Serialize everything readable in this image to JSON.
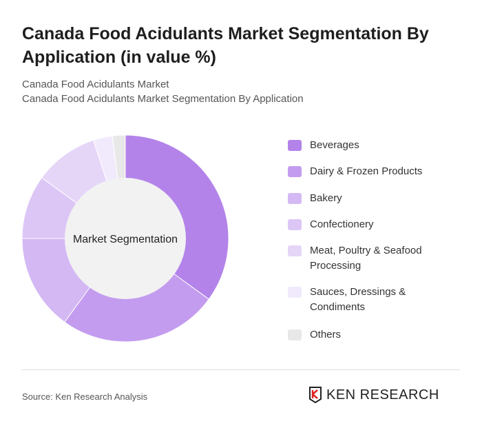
{
  "title": "Canada Food Acidulants Market Segmentation By Application (in value %)",
  "subtitle1": "Canada Food Acidulants Market",
  "subtitle2": "Canada Food Acidulants Market Segmentation By Application",
  "source": "Source: Ken Research Analysis",
  "logo_text": "KEN RESEARCH",
  "chart_data": {
    "type": "pie",
    "center_label": "Market Segmentation",
    "legend_position": "right",
    "categories": [
      "Beverages",
      "Dairy & Frozen Products",
      "Bakery",
      "Confectionery",
      "Meat, Poultry & Seafood Processing",
      "Sauces, Dressings & Condiments",
      "Others"
    ],
    "values": [
      35,
      25,
      15,
      10,
      10,
      3,
      2
    ],
    "colors": [
      "#b383ea",
      "#c39cef",
      "#d4b8f4",
      "#dcc6f6",
      "#e5d6f8",
      "#f1eafc",
      "#e8e8e8"
    ]
  }
}
